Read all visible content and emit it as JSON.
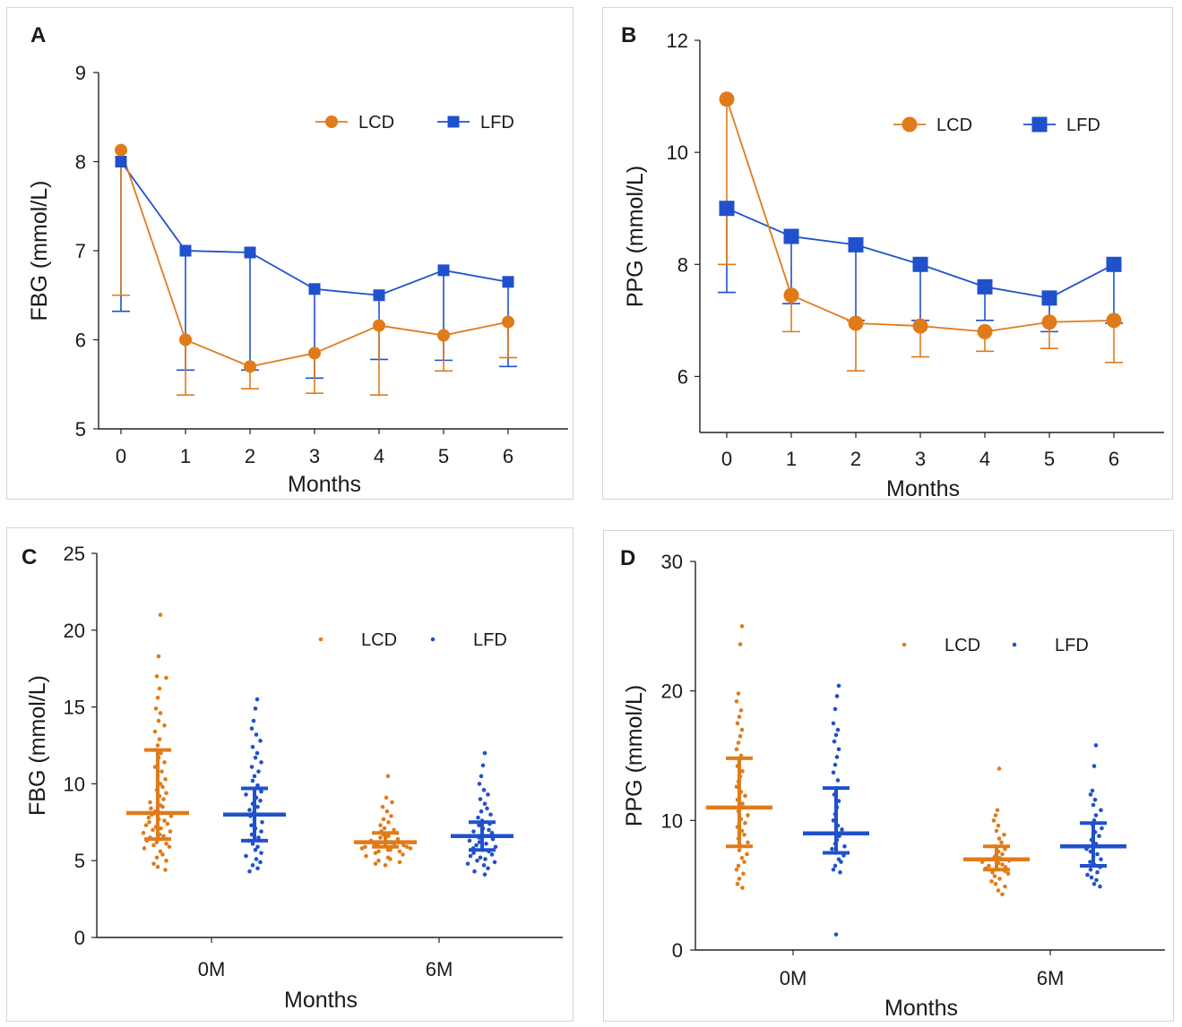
{
  "chart_data": [
    {
      "panel": "A",
      "type": "line",
      "title": "",
      "xlabel": "Months",
      "ylabel": "FBG (mmol/L)",
      "categories": [
        "0",
        "1",
        "2",
        "3",
        "4",
        "5",
        "6"
      ],
      "ylim": [
        5,
        9
      ],
      "yticks": [
        5,
        6,
        7,
        8,
        9
      ],
      "legend": {
        "position": "top-right",
        "entries": [
          "LCD",
          "LFD"
        ]
      },
      "series": [
        {
          "name": "LCD",
          "color": "#E07B1A",
          "marker": "circle",
          "values": [
            8.13,
            6.0,
            5.7,
            5.85,
            6.16,
            6.05,
            6.2
          ],
          "err_lower": [
            6.5,
            5.38,
            5.45,
            5.4,
            5.38,
            5.65,
            5.8
          ]
        },
        {
          "name": "LFD",
          "color": "#1F51CC",
          "marker": "square",
          "values": [
            8.0,
            7.0,
            6.98,
            6.57,
            6.5,
            6.78,
            6.65
          ],
          "err_lower": [
            6.32,
            5.66,
            5.66,
            5.57,
            5.78,
            5.77,
            5.7
          ]
        }
      ]
    },
    {
      "panel": "B",
      "type": "line",
      "title": "",
      "xlabel": "Months",
      "ylabel": "PPG (mmol/L)",
      "categories": [
        "0",
        "1",
        "2",
        "3",
        "4",
        "5",
        "6"
      ],
      "ylim": [
        5,
        12
      ],
      "yticks": [
        6,
        8,
        10,
        12
      ],
      "legend": {
        "position": "top-right",
        "entries": [
          "LCD",
          "LFD"
        ]
      },
      "series": [
        {
          "name": "LCD",
          "color": "#E07B1A",
          "marker": "circle",
          "values": [
            10.95,
            7.45,
            6.95,
            6.9,
            6.8,
            6.97,
            7.0
          ],
          "err_lower": [
            8.0,
            6.8,
            6.1,
            6.35,
            6.45,
            6.5,
            6.25
          ]
        },
        {
          "name": "LFD",
          "color": "#1F51CC",
          "marker": "square",
          "values": [
            9.0,
            8.5,
            8.35,
            8.0,
            7.6,
            7.4,
            8.0
          ],
          "err_lower": [
            7.5,
            7.3,
            7.0,
            7.0,
            7.0,
            6.8,
            6.95
          ]
        }
      ]
    },
    {
      "panel": "C",
      "type": "scatter",
      "title": "",
      "xlabel": "Months",
      "ylabel": "FBG (mmol/L)",
      "categories": [
        "0M",
        "6M"
      ],
      "ylim": [
        0,
        25
      ],
      "yticks": [
        0,
        5,
        10,
        15,
        20,
        25
      ],
      "legend": {
        "position": "top-right",
        "entries": [
          "LCD",
          "LFD"
        ]
      },
      "groups": [
        {
          "category": "0M",
          "series": "LCD",
          "color": "#E07B1A",
          "mean": 8.1,
          "sd_low": 6.4,
          "sd_high": 12.2,
          "points": [
            21.0,
            18.3,
            17.0,
            16.9,
            16.2,
            15.6,
            14.9,
            14.6,
            14.1,
            13.8,
            13.4,
            12.9,
            12.5,
            12.2,
            12.0,
            11.7,
            11.4,
            11.1,
            10.8,
            10.5,
            10.3,
            10.0,
            9.8,
            9.6,
            9.4,
            9.2,
            9.0,
            8.8,
            8.6,
            8.5,
            8.4,
            8.2,
            8.1,
            8.0,
            7.9,
            7.8,
            7.7,
            7.6,
            7.5,
            7.4,
            7.3,
            7.2,
            7.1,
            7.0,
            6.9,
            6.8,
            6.7,
            6.6,
            6.5,
            6.4,
            6.3,
            6.2,
            6.1,
            6.0,
            5.9,
            5.8,
            5.6,
            5.4,
            5.2,
            5.0,
            4.8,
            4.6,
            4.4
          ]
        },
        {
          "category": "0M",
          "series": "LFD",
          "color": "#1F51CC",
          "mean": 8.0,
          "sd_low": 6.3,
          "sd_high": 9.7,
          "points": [
            15.5,
            14.9,
            14.1,
            13.6,
            13.2,
            12.8,
            12.4,
            12.0,
            11.7,
            11.4,
            11.1,
            10.8,
            10.5,
            10.2,
            9.9,
            9.7,
            9.5,
            9.3,
            9.1,
            8.9,
            8.7,
            8.5,
            8.3,
            8.1,
            8.0,
            7.9,
            7.7,
            7.5,
            7.3,
            7.1,
            6.9,
            6.7,
            6.5,
            6.3,
            6.1,
            5.9,
            5.7,
            5.5,
            5.3,
            5.1,
            4.9,
            4.7,
            4.5,
            4.3
          ]
        },
        {
          "category": "6M",
          "series": "LCD",
          "color": "#E07B1A",
          "mean": 6.2,
          "sd_low": 5.9,
          "sd_high": 6.8,
          "points": [
            10.5,
            9.1,
            8.8,
            8.5,
            8.2,
            7.9,
            7.7,
            7.5,
            7.3,
            7.1,
            7.0,
            6.9,
            6.8,
            6.7,
            6.6,
            6.5,
            6.4,
            6.3,
            6.2,
            6.2,
            6.1,
            6.1,
            6.0,
            6.0,
            5.9,
            5.9,
            5.8,
            5.8,
            5.7,
            5.7,
            5.6,
            5.6,
            5.5,
            5.4,
            5.3,
            5.2,
            5.1,
            5.0,
            4.9,
            4.8,
            4.7
          ]
        },
        {
          "category": "6M",
          "series": "LFD",
          "color": "#1F51CC",
          "mean": 6.6,
          "sd_low": 5.7,
          "sd_high": 7.5,
          "points": [
            12.0,
            11.2,
            10.5,
            10.0,
            9.6,
            9.3,
            9.0,
            8.7,
            8.4,
            8.2,
            8.0,
            7.8,
            7.6,
            7.4,
            7.3,
            7.1,
            7.0,
            6.9,
            6.8,
            6.7,
            6.6,
            6.5,
            6.4,
            6.3,
            6.2,
            6.1,
            6.0,
            5.9,
            5.8,
            5.7,
            5.6,
            5.5,
            5.4,
            5.3,
            5.2,
            5.1,
            5.0,
            4.9,
            4.8,
            4.7,
            4.5,
            4.3,
            4.1
          ]
        }
      ]
    },
    {
      "panel": "D",
      "type": "scatter",
      "title": "",
      "xlabel": "Months",
      "ylabel": "PPG (mmol/L)",
      "categories": [
        "0M",
        "6M"
      ],
      "ylim": [
        0,
        30
      ],
      "yticks": [
        0,
        10,
        20,
        30
      ],
      "legend": {
        "position": "top-right",
        "entries": [
          "LCD",
          "LFD"
        ]
      },
      "groups": [
        {
          "category": "0M",
          "series": "LCD",
          "color": "#E07B1A",
          "mean": 11.0,
          "sd_low": 8.0,
          "sd_high": 14.8,
          "points": [
            25.0,
            23.6,
            19.8,
            19.2,
            18.5,
            18.0,
            17.5,
            17.0,
            16.5,
            16.0,
            15.5,
            15.0,
            14.6,
            14.2,
            13.8,
            13.4,
            13.0,
            12.6,
            12.2,
            11.9,
            11.6,
            11.3,
            11.0,
            10.7,
            10.4,
            10.1,
            9.8,
            9.5,
            9.2,
            8.9,
            8.6,
            8.3,
            8.0,
            7.7,
            7.4,
            7.1,
            6.8,
            6.5,
            6.2,
            5.9,
            5.5,
            5.1,
            4.8
          ]
        },
        {
          "category": "0M",
          "series": "LFD",
          "color": "#1F51CC",
          "mean": 9.0,
          "sd_low": 7.5,
          "sd_high": 12.5,
          "points": [
            20.4,
            19.6,
            18.6,
            17.5,
            17.0,
            16.6,
            16.1,
            15.5,
            14.9,
            14.3,
            13.7,
            13.1,
            12.5,
            12.0,
            11.5,
            11.0,
            10.5,
            10.0,
            9.6,
            9.3,
            9.0,
            8.8,
            8.5,
            8.2,
            8.0,
            7.8,
            7.5,
            7.3,
            7.0,
            6.8,
            6.5,
            6.2,
            6.0,
            1.2
          ]
        },
        {
          "category": "6M",
          "series": "LCD",
          "color": "#E07B1A",
          "mean": 7.0,
          "sd_low": 6.2,
          "sd_high": 8.0,
          "points": [
            14.0,
            10.8,
            10.4,
            10.0,
            9.6,
            9.2,
            8.9,
            8.6,
            8.3,
            8.0,
            7.8,
            7.6,
            7.4,
            7.2,
            7.1,
            7.0,
            6.9,
            6.8,
            6.7,
            6.6,
            6.5,
            6.4,
            6.3,
            6.2,
            6.1,
            6.0,
            5.9,
            5.7,
            5.5,
            5.3,
            5.1,
            4.9,
            4.6,
            4.3
          ]
        },
        {
          "category": "6M",
          "series": "LFD",
          "color": "#1F51CC",
          "mean": 8.0,
          "sd_low": 6.5,
          "sd_high": 9.8,
          "points": [
            15.8,
            14.2,
            12.3,
            12.0,
            11.6,
            11.2,
            10.8,
            10.4,
            10.0,
            9.7,
            9.4,
            9.1,
            8.8,
            8.5,
            8.2,
            8.0,
            7.8,
            7.6,
            7.4,
            7.2,
            7.0,
            6.8,
            6.6,
            6.4,
            6.2,
            6.0,
            5.8,
            5.6,
            5.4,
            5.1,
            4.9
          ]
        }
      ]
    }
  ]
}
